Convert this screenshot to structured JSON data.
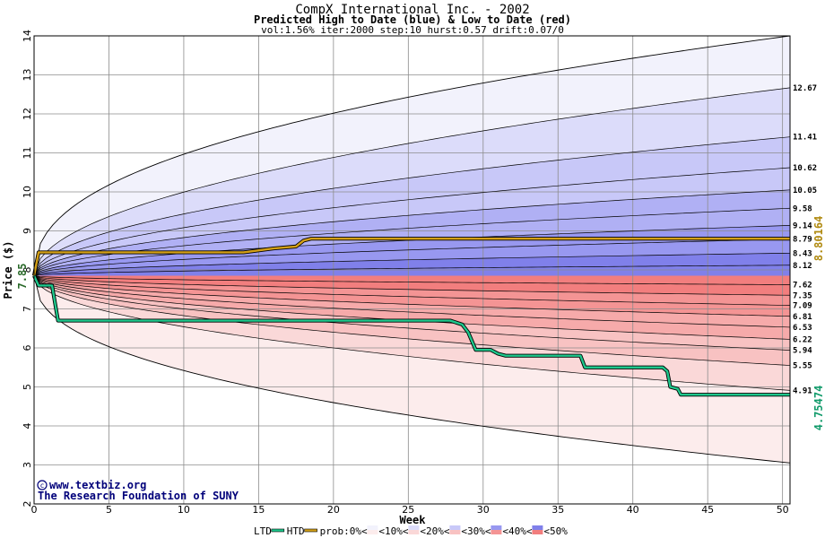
{
  "chart_data": {
    "type": "area",
    "title": "CompX International Inc. - 2002",
    "subtitle": "Predicted High to Date (blue) &  Low to Date (red)",
    "params": "vol:1.56% iter:2000 step:10 hurst:0.57 drift:0.07/0",
    "xlabel": "Week",
    "ylabel": "Price ($)",
    "xlim": [
      0,
      50.5
    ],
    "ylim": [
      2,
      14
    ],
    "xticks": [
      0,
      5,
      10,
      15,
      20,
      25,
      30,
      35,
      40,
      45,
      50
    ],
    "yticks": [
      2,
      3,
      4,
      5,
      6,
      7,
      8,
      9,
      10,
      11,
      12,
      13,
      14
    ],
    "start_price": 7.85,
    "start_price_label": "7.85",
    "grid": true,
    "percentile_curves": {
      "upper": [
        {
          "end": 12.67,
          "label": "12.67"
        },
        {
          "end": 11.41,
          "label": "11.41"
        },
        {
          "end": 10.62,
          "label": "10.62"
        },
        {
          "end": 10.05,
          "label": "10.05"
        },
        {
          "end": 9.58,
          "label": "9.58"
        },
        {
          "end": 9.14,
          "label": "9.14"
        },
        {
          "end": 8.79,
          "label": "8.79"
        },
        {
          "end": 8.43,
          "label": "8.43"
        },
        {
          "end": 8.12,
          "label": "8.12"
        }
      ],
      "lower": [
        {
          "end": 7.62,
          "label": "7.62"
        },
        {
          "end": 7.35,
          "label": "7.35"
        },
        {
          "end": 7.09,
          "label": "7.09"
        },
        {
          "end": 6.81,
          "label": "6.81"
        },
        {
          "end": 6.53,
          "label": "6.53"
        },
        {
          "end": 6.22,
          "label": "6.22"
        },
        {
          "end": 5.94,
          "label": "5.94"
        },
        {
          "end": 5.55,
          "label": "5.55"
        },
        {
          "end": 4.91,
          "label": "4.91"
        }
      ],
      "upper_outer_end": 14.0,
      "lower_outer_end": 3.05
    },
    "series": [
      {
        "name": "HTD",
        "color": "#d4a017",
        "final_label": "8.80164",
        "points": [
          [
            0,
            7.85
          ],
          [
            0.3,
            8.45
          ],
          [
            14,
            8.45
          ],
          [
            16,
            8.55
          ],
          [
            17.5,
            8.6
          ],
          [
            18,
            8.75
          ],
          [
            18.5,
            8.8
          ],
          [
            30,
            8.8
          ],
          [
            50.5,
            8.8
          ]
        ]
      },
      {
        "name": "LTD",
        "color": "#1ec88c",
        "final_label": "4.75474",
        "points": [
          [
            0,
            7.85
          ],
          [
            0.3,
            7.6
          ],
          [
            1.2,
            7.6
          ],
          [
            1.6,
            6.7
          ],
          [
            27.8,
            6.7
          ],
          [
            28.6,
            6.6
          ],
          [
            29,
            6.4
          ],
          [
            29.5,
            5.95
          ],
          [
            30.5,
            5.95
          ],
          [
            31,
            5.85
          ],
          [
            31.5,
            5.8
          ],
          [
            36.5,
            5.8
          ],
          [
            36.8,
            5.5
          ],
          [
            42,
            5.5
          ],
          [
            42.3,
            5.4
          ],
          [
            42.5,
            5.0
          ],
          [
            43,
            4.95
          ],
          [
            43.2,
            4.8
          ],
          [
            50.5,
            4.8
          ]
        ]
      }
    ],
    "legend": {
      "items": [
        "LTD",
        "HTD",
        "prob:0%<",
        "<10%<",
        "<20%<",
        "<30%<",
        "<40%<",
        "<50%"
      ],
      "placement": "bottom"
    },
    "colors": {
      "band_upper": [
        "#f2f2fc",
        "#dcdcfa",
        "#c8c8f8",
        "#b0b0f4",
        "#9898f0",
        "#8080ea"
      ],
      "band_lower": [
        "#fcecec",
        "#fad8d8",
        "#f8c2c2",
        "#f6aaaa",
        "#f49494",
        "#f27e7e"
      ],
      "grid": "#8c8c8c",
      "credit": "#00007a"
    }
  },
  "credits": {
    "line1": "www.textbiz.org",
    "line2": "The Research Foundation of SUNY"
  }
}
